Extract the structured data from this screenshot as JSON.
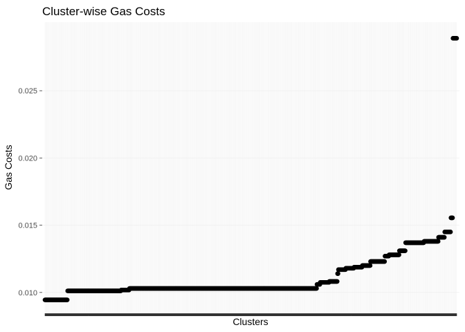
{
  "chart_data": {
    "type": "scatter",
    "title": "Cluster-wise Gas Costs",
    "xlabel": "Clusters",
    "ylabel": "Gas Costs",
    "y_ticks": [
      "0.010",
      "0.015",
      "0.020",
      "0.025"
    ],
    "y_tick_values": [
      0.01,
      0.015,
      0.02,
      0.025
    ],
    "ylim": [
      0.0085,
      0.0301
    ],
    "x_tick_labels_shown": false,
    "grid": true,
    "legend": "none",
    "point_color": "#000000",
    "n_points": 1000,
    "segments": [
      {
        "from": 1,
        "to": 55,
        "value": 0.00945
      },
      {
        "from": 56,
        "to": 185,
        "value": 0.01012
      },
      {
        "from": 186,
        "to": 205,
        "value": 0.01018
      },
      {
        "from": 206,
        "to": 660,
        "value": 0.0103
      },
      {
        "from": 661,
        "to": 668,
        "value": 0.0106
      },
      {
        "from": 669,
        "to": 690,
        "value": 0.01075
      },
      {
        "from": 691,
        "to": 710,
        "value": 0.01082
      },
      {
        "from": 711,
        "to": 712,
        "value": 0.0114
      },
      {
        "from": 713,
        "to": 730,
        "value": 0.0117
      },
      {
        "from": 731,
        "to": 750,
        "value": 0.0118
      },
      {
        "from": 751,
        "to": 770,
        "value": 0.01188
      },
      {
        "from": 771,
        "to": 790,
        "value": 0.012
      },
      {
        "from": 791,
        "to": 825,
        "value": 0.0123
      },
      {
        "from": 826,
        "to": 835,
        "value": 0.0127
      },
      {
        "from": 836,
        "to": 860,
        "value": 0.0128
      },
      {
        "from": 861,
        "to": 875,
        "value": 0.0131
      },
      {
        "from": 876,
        "to": 920,
        "value": 0.0137
      },
      {
        "from": 921,
        "to": 955,
        "value": 0.0138
      },
      {
        "from": 956,
        "to": 970,
        "value": 0.0141
      },
      {
        "from": 971,
        "to": 985,
        "value": 0.0145
      },
      {
        "from": 986,
        "to": 990,
        "value": 0.01555
      },
      {
        "from": 991,
        "to": 1000,
        "value": 0.0289
      }
    ]
  }
}
